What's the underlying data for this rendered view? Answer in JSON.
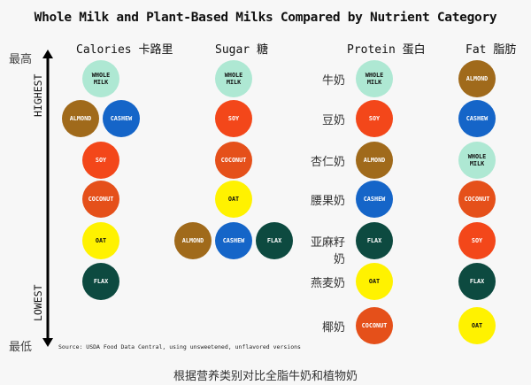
{
  "title": "Whole Milk and Plant-Based Milks Compared by Nutrient Category",
  "axis": {
    "top_zh": "最高",
    "bottom_zh": "最低",
    "top_en": "HIGHEST",
    "bottom_en": "LOWEST"
  },
  "colors": {
    "whole_milk": "#aee8d3",
    "almond": "#a06a1b",
    "cashew": "#1565c8",
    "soy": "#f3471a",
    "coconut": "#e5501a",
    "oat": "#fff200",
    "flax": "#0d4a40"
  },
  "columns": [
    {
      "title_en": "Calories",
      "title_zh": "卡路里",
      "ranks": [
        {
          "rank": 1,
          "items": [
            {
              "key": "whole_milk",
              "label": "WHOLE\nMILK"
            }
          ]
        },
        {
          "rank": 2,
          "items": [
            {
              "key": "almond",
              "label": "ALMOND"
            },
            {
              "key": "cashew",
              "label": "CASHEW"
            }
          ]
        },
        {
          "rank": 3,
          "items": [
            {
              "key": "soy",
              "label": "SOY"
            }
          ]
        },
        {
          "rank": 4,
          "items": [
            {
              "key": "coconut",
              "label": "COCONUT"
            }
          ]
        },
        {
          "rank": 5,
          "items": [
            {
              "key": "oat",
              "label": "OAT"
            }
          ]
        },
        {
          "rank": 6,
          "items": [
            {
              "key": "flax",
              "label": "FLAX"
            }
          ]
        }
      ]
    },
    {
      "title_en": "Sugar",
      "title_zh": "糖",
      "ranks": [
        {
          "rank": 1,
          "items": [
            {
              "key": "whole_milk",
              "label": "WHOLE\nMILK"
            }
          ]
        },
        {
          "rank": 2,
          "items": [
            {
              "key": "soy",
              "label": "SOY"
            }
          ]
        },
        {
          "rank": 3,
          "items": [
            {
              "key": "coconut",
              "label": "COCONUT"
            }
          ]
        },
        {
          "rank": 4,
          "items": [
            {
              "key": "oat",
              "label": "OAT"
            }
          ]
        },
        {
          "rank": 5,
          "items": [
            {
              "key": "almond",
              "label": "ALMOND"
            },
            {
              "key": "cashew",
              "label": "CASHEW"
            },
            {
              "key": "flax",
              "label": "FLAX"
            }
          ]
        }
      ]
    },
    {
      "title_en": "Protein",
      "title_zh": "蛋白",
      "ranks": [
        {
          "rank": 1,
          "row_label": "牛奶",
          "items": [
            {
              "key": "whole_milk",
              "label": "WHOLE\nMILK"
            }
          ]
        },
        {
          "rank": 2,
          "row_label": "豆奶",
          "items": [
            {
              "key": "soy",
              "label": "SOY"
            }
          ]
        },
        {
          "rank": 3,
          "row_label": "杏仁奶",
          "items": [
            {
              "key": "almond",
              "label": "ALMOND"
            }
          ]
        },
        {
          "rank": 4,
          "row_label": "腰果奶",
          "items": [
            {
              "key": "cashew",
              "label": "CASHEW"
            }
          ]
        },
        {
          "rank": 5,
          "row_label": "亚麻籽奶",
          "items": [
            {
              "key": "flax",
              "label": "FLAX"
            }
          ]
        },
        {
          "rank": 6,
          "row_label": "燕麦奶",
          "items": [
            {
              "key": "oat",
              "label": "OAT"
            }
          ]
        },
        {
          "rank": 7,
          "row_label": "椰奶",
          "items": [
            {
              "key": "coconut",
              "label": "COCONUT"
            }
          ]
        }
      ]
    },
    {
      "title_en": "Fat",
      "title_zh": "脂肪",
      "ranks": [
        {
          "rank": 1,
          "items": [
            {
              "key": "almond",
              "label": "ALMOND"
            }
          ]
        },
        {
          "rank": 2,
          "items": [
            {
              "key": "cashew",
              "label": "CASHEW"
            }
          ]
        },
        {
          "rank": 3,
          "items": [
            {
              "key": "whole_milk",
              "label": "WHOLE\nMILK"
            }
          ]
        },
        {
          "rank": 4,
          "items": [
            {
              "key": "coconut",
              "label": "COCONUT"
            }
          ]
        },
        {
          "rank": 5,
          "items": [
            {
              "key": "soy",
              "label": "SOY"
            }
          ]
        },
        {
          "rank": 6,
          "items": [
            {
              "key": "flax",
              "label": "FLAX"
            }
          ]
        },
        {
          "rank": 7,
          "items": [
            {
              "key": "oat",
              "label": "OAT"
            }
          ]
        }
      ]
    }
  ],
  "source": "Source: USDA Food Data Central, using unsweetened, unflavored versions",
  "subtitle": "根据营养类别对比全脂牛奶和植物奶"
}
